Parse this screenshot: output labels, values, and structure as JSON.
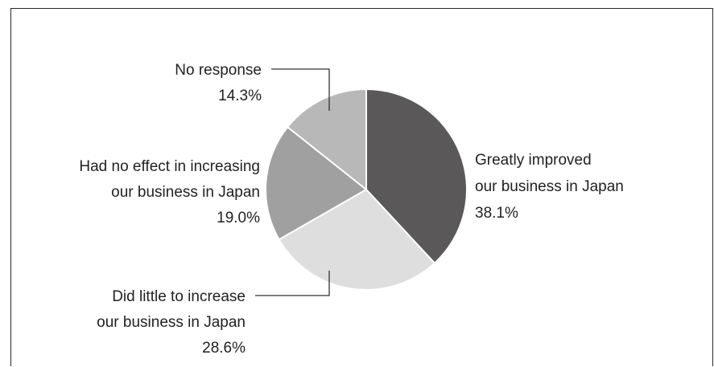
{
  "chart_data": {
    "type": "pie",
    "title": "",
    "slices": [
      {
        "key": "greatly",
        "label_lines": [
          "Greatly improved",
          "our business in Japan"
        ],
        "pct_label": "38.1%",
        "value": 38.1,
        "color": "#5a5859"
      },
      {
        "key": "little",
        "label_lines": [
          "Did little to increase",
          "our business in Japan"
        ],
        "pct_label": "28.6%",
        "value": 28.6,
        "color": "#dedede"
      },
      {
        "key": "noeffect",
        "label_lines": [
          "Had no effect in increasing",
          "our business in Japan"
        ],
        "pct_label": "19.0%",
        "value": 19.0,
        "color": "#a0a0a0"
      },
      {
        "key": "noresp",
        "label_lines": [
          "No response"
        ],
        "pct_label": "14.3%",
        "value": 14.3,
        "color": "#b8b8b8"
      }
    ],
    "start_angle": "top",
    "direction": "clockwise"
  }
}
